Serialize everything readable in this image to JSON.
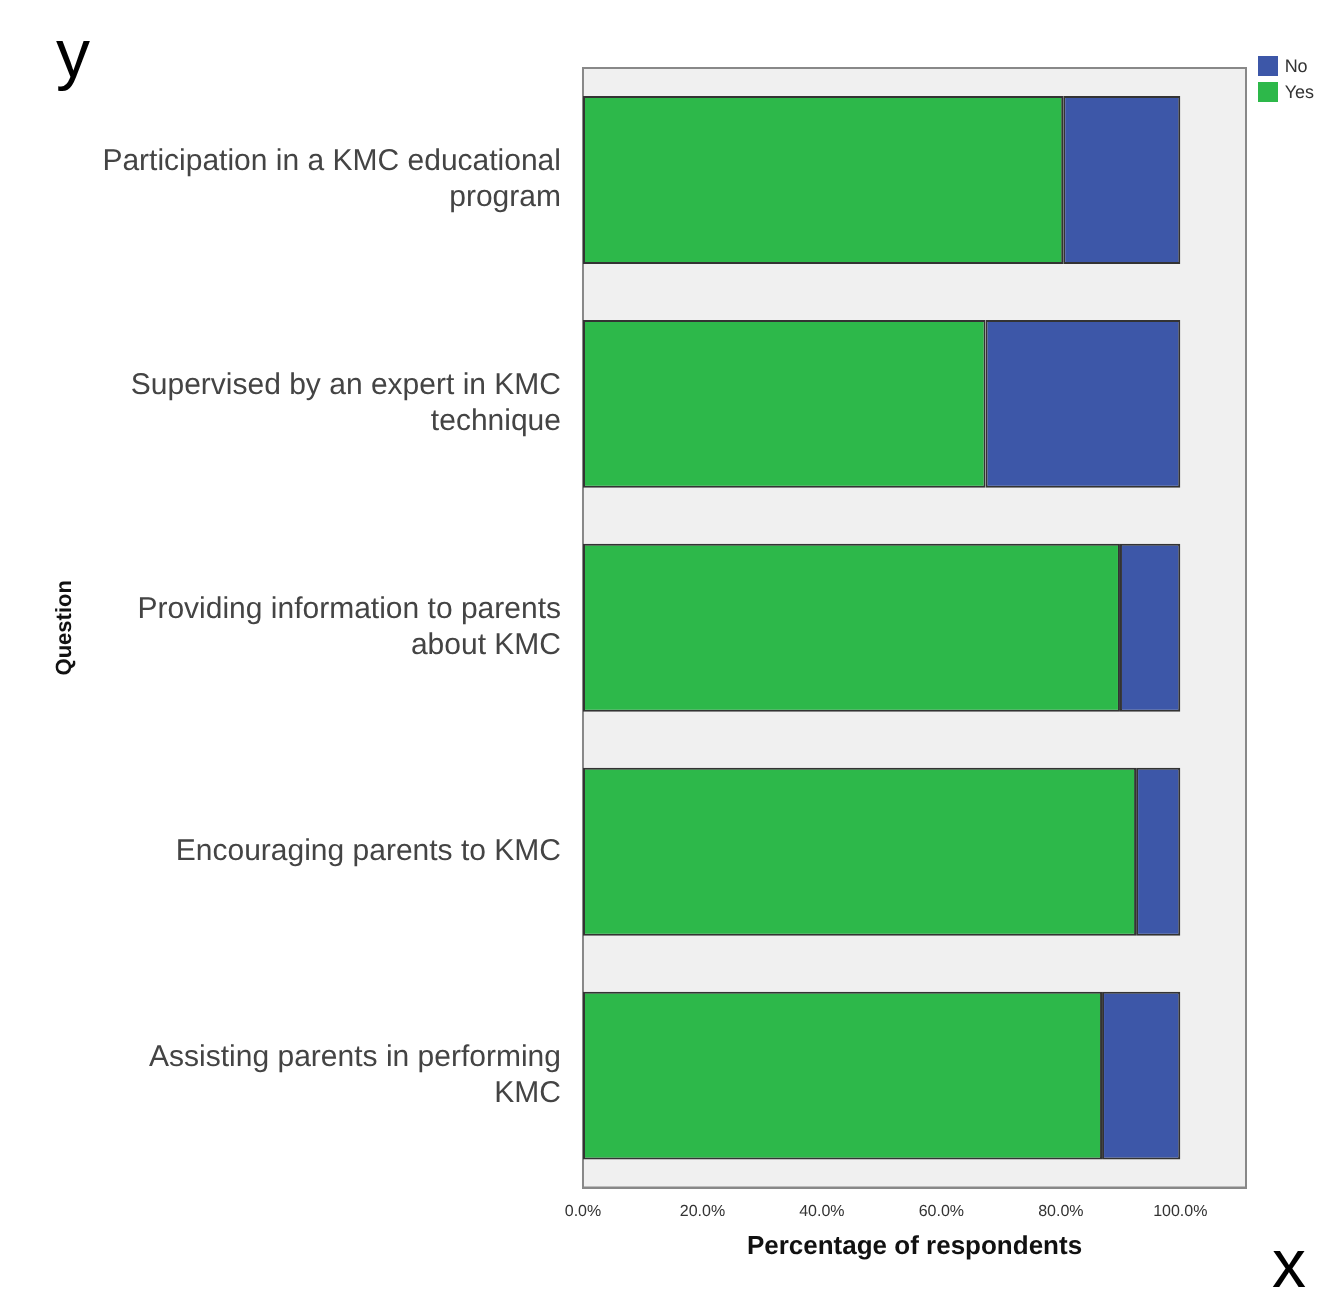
{
  "chart_data": {
    "type": "bar",
    "orientation": "horizontal",
    "stacked": true,
    "xlabel": "Percentage of respondents",
    "ylabel": "Question",
    "categories": [
      "Participation in a KMC educational program",
      "Supervised by an expert in KMC technique",
      "Providing information to parents about KMC",
      "Encouraging parents to KMC",
      "Assisting parents in performing KMC"
    ],
    "series": [
      {
        "name": "Yes",
        "color": "#2db84a",
        "values": [
          80.4,
          67.4,
          89.9,
          92.6,
          86.9
        ]
      },
      {
        "name": "No",
        "color": "#3d57a8",
        "values": [
          19.6,
          32.6,
          10.1,
          7.4,
          13.1
        ]
      }
    ],
    "xlim": [
      0,
      111
    ],
    "xticks": [
      {
        "value": 0,
        "label": "0.0%"
      },
      {
        "value": 20,
        "label": "20.0%"
      },
      {
        "value": 40,
        "label": "40.0%"
      },
      {
        "value": 60,
        "label": "60.0%"
      },
      {
        "value": 80,
        "label": "80.0%"
      },
      {
        "value": 100,
        "label": "100.0%"
      }
    ],
    "grid": false,
    "legend": "top right",
    "annotations": [
      "y",
      "x"
    ]
  }
}
